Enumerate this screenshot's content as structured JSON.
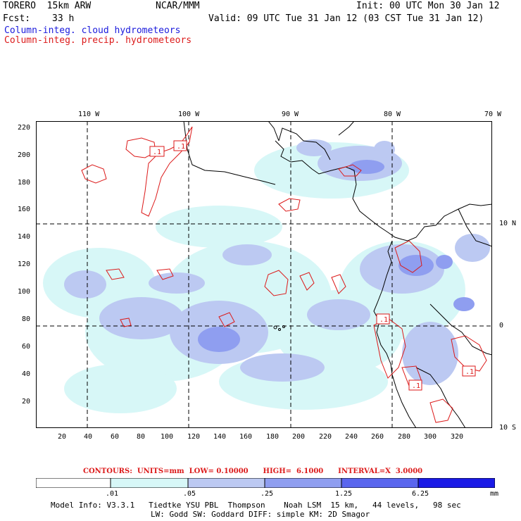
{
  "header": {
    "model": "TORERO  15km ARW",
    "center": "NCAR/MMM",
    "init": "Init: 00 UTC Mon 30 Jan 12",
    "fcst_label": "Fcst:",
    "fcst_value": "33 h",
    "valid": "Valid: 09 UTC Tue 31 Jan 12 (03 CST Tue 31 Jan 12)",
    "field1": "Column-integ. cloud hydrometeors",
    "field2": "Column-integ. precip. hydrometeors"
  },
  "axes": {
    "top_labels": [
      "110 W",
      "100 W",
      "90 W",
      "80 W",
      "70 W"
    ],
    "right_labels": [
      "10 N",
      "0",
      "10 S"
    ],
    "left_labels": [
      "220",
      "200",
      "180",
      "160",
      "140",
      "120",
      "100",
      "80",
      "60",
      "40",
      "20"
    ],
    "bottom_labels": [
      "20",
      "40",
      "60",
      "80",
      "100",
      "120",
      "140",
      "160",
      "180",
      "200",
      "220",
      "240",
      "260",
      "280",
      "300",
      "320"
    ]
  },
  "map_labels": [
    ".1",
    ".1",
    ".1",
    ".1",
    ".1"
  ],
  "contours": {
    "text": "CONTOURS:  UNITS=mm  LOW= 0.10000      HIGH=  6.1000      INTERVAL=X  3.0000"
  },
  "legend": {
    "ticks": [
      ".01",
      ".05",
      ".25",
      "1.25",
      "6.25"
    ],
    "unit": "mm",
    "colors": [
      "#ffffff",
      "#d7f7f7",
      "#bcc9f2",
      "#8f9ef0",
      "#5a66ee",
      "#3b3bee",
      "#1a1ae6"
    ]
  },
  "footer": {
    "line1": "Model Info: V3.3.1   Tiedtke YSU PBL  Thompson    Noah LSM  15 km,   44 levels,   98 sec",
    "line2": "LW: Godd SW: Goddard DIFF: simple KM: 2D Smagor"
  }
}
